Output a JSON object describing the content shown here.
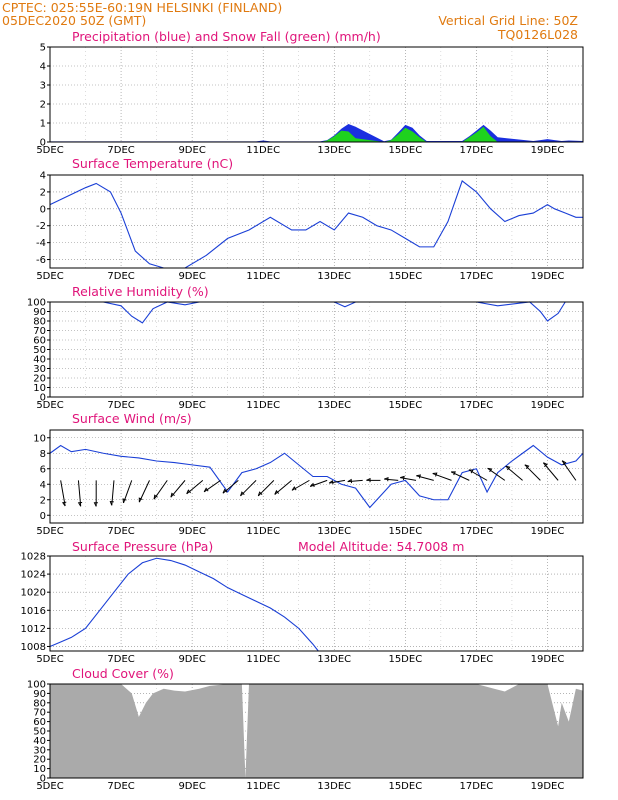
{
  "header": {
    "line1_left": "CPTEC:   025:55E-60:19N   HELSINKI (FINLAND)",
    "line2_left": "05DEC2020 50Z (GMT)",
    "line1_right": "Vertical Grid Line: 50Z",
    "line2_right": "TQ0126L028"
  },
  "colors": {
    "precip": "#1a2fe0",
    "snow": "#1ed21e",
    "line": "#1a3fd6",
    "cloud": "#aaaaaa",
    "header": "#e07a10",
    "title": "#e0147a",
    "arrow": "#000000"
  },
  "x_axis": {
    "labels": [
      "5DEC",
      "7DEC",
      "9DEC",
      "11DEC",
      "13DEC",
      "15DEC",
      "17DEC",
      "19DEC"
    ],
    "range_days": [
      0,
      15
    ]
  },
  "chart_data": [
    {
      "type": "area",
      "title": "Precipitation (blue) and Snow Fall (green) (mm/h)",
      "ylim": [
        0,
        5
      ],
      "yticks": [
        0,
        1,
        2,
        3,
        4,
        5
      ],
      "series": [
        {
          "name": "Precipitation",
          "x": [
            0,
            5.8,
            6.0,
            6.2,
            7.6,
            7.8,
            8.0,
            8.2,
            8.4,
            8.6,
            9.4,
            9.6,
            9.8,
            10.0,
            10.2,
            10.4,
            10.6,
            11.6,
            11.8,
            12.0,
            12.2,
            12.4,
            12.6,
            13.6,
            13.8,
            14.0,
            14.2,
            14.4,
            14.6,
            15.0
          ],
          "values": [
            0.03,
            0.03,
            0.08,
            0.03,
            0.03,
            0.1,
            0.35,
            0.7,
            0.95,
            0.8,
            0.04,
            0.12,
            0.5,
            0.9,
            0.75,
            0.35,
            0.05,
            0.05,
            0.3,
            0.6,
            0.9,
            0.6,
            0.25,
            0.05,
            0.1,
            0.15,
            0.1,
            0.05,
            0.08,
            0.05
          ]
        },
        {
          "name": "Snow Fall",
          "x": [
            0,
            7.6,
            7.8,
            8.0,
            8.2,
            8.4,
            8.6,
            9.4,
            9.6,
            9.8,
            10.0,
            10.2,
            10.4,
            10.6,
            11.6,
            11.8,
            12.0,
            12.2,
            12.4,
            12.6,
            13.6,
            15.0
          ],
          "values": [
            0.0,
            0.0,
            0.08,
            0.3,
            0.6,
            0.55,
            0.2,
            0.0,
            0.1,
            0.4,
            0.75,
            0.55,
            0.25,
            0.0,
            0.0,
            0.25,
            0.5,
            0.8,
            0.3,
            0.0,
            0.0,
            0.0
          ]
        }
      ]
    },
    {
      "type": "line",
      "title": "Surface Temperature (nC)",
      "ylim": [
        -7,
        4
      ],
      "yticks": [
        -6,
        -4,
        -2,
        0,
        2,
        4
      ],
      "x": [
        0,
        0.5,
        1.0,
        1.3,
        1.7,
        2.0,
        2.4,
        2.8,
        3.2,
        3.8,
        4.4,
        5.0,
        5.6,
        6.2,
        6.8,
        7.2,
        7.6,
        8.0,
        8.4,
        8.8,
        9.2,
        9.6,
        10.0,
        10.4,
        10.8,
        11.2,
        11.6,
        12.0,
        12.4,
        12.8,
        13.2,
        13.6,
        14.0,
        14.2,
        14.5,
        14.8,
        15.0
      ],
      "values": [
        0.5,
        1.5,
        2.5,
        3.0,
        2.0,
        -0.5,
        -5.0,
        -6.5,
        -7.0,
        -7.0,
        -5.5,
        -3.5,
        -2.5,
        -1.0,
        -2.5,
        -2.5,
        -1.5,
        -2.5,
        -0.5,
        -1.0,
        -2.0,
        -2.5,
        -3.5,
        -4.5,
        -4.5,
        -1.5,
        3.3,
        2.0,
        0.0,
        -1.5,
        -0.8,
        -0.5,
        0.5,
        0.0,
        -0.5,
        -1.0,
        -1.0
      ]
    },
    {
      "type": "line",
      "title": "Relative Humidity (%)",
      "ylim": [
        0,
        100
      ],
      "yticks": [
        0,
        10,
        20,
        30,
        40,
        50,
        60,
        70,
        80,
        90,
        100
      ],
      "x": [
        0,
        1.5,
        2.0,
        2.3,
        2.6,
        2.9,
        3.3,
        3.8,
        4.2,
        4.8,
        5.4,
        6.0,
        6.8,
        8.0,
        8.3,
        8.6,
        9.0,
        10.0,
        11.0,
        12.0,
        12.6,
        13.5,
        13.8,
        14.0,
        14.3,
        14.5,
        15.0
      ],
      "values": [
        100,
        100,
        96,
        85,
        78,
        93,
        100,
        97,
        100,
        100,
        100,
        100,
        100,
        100,
        95,
        100,
        100,
        100,
        100,
        100,
        96,
        100,
        90,
        80,
        88,
        100,
        100
      ]
    },
    {
      "type": "line",
      "title": "Surface Wind (m/s)",
      "ylim": [
        -1,
        11
      ],
      "yticks": [
        0,
        2,
        4,
        6,
        8,
        10
      ],
      "x": [
        0,
        0.3,
        0.6,
        1.0,
        1.5,
        2.0,
        2.5,
        3.0,
        3.5,
        4.0,
        4.5,
        5.0,
        5.4,
        5.8,
        6.2,
        6.6,
        7.0,
        7.4,
        7.8,
        8.2,
        8.6,
        9.0,
        9.3,
        9.6,
        10.0,
        10.4,
        10.8,
        11.2,
        11.6,
        12.0,
        12.3,
        12.6,
        13.0,
        13.3,
        13.6,
        14.0,
        14.4,
        14.8,
        15.0
      ],
      "values": [
        8.0,
        9.0,
        8.2,
        8.5,
        8.0,
        7.6,
        7.4,
        7.0,
        6.8,
        6.5,
        6.2,
        3.0,
        5.5,
        6.0,
        6.8,
        8.0,
        6.5,
        5.0,
        5.0,
        4.0,
        3.5,
        1.0,
        2.5,
        4.0,
        4.5,
        2.5,
        2.0,
        2.0,
        5.5,
        6.0,
        3.0,
        5.5,
        7.0,
        8.0,
        9.0,
        7.5,
        6.5,
        7.0,
        8.0
      ]
    },
    {
      "type": "line",
      "title": "Surface Pressure (hPa)",
      "ylim": [
        1007,
        1028
      ],
      "yticks": [
        1008,
        1012,
        1016,
        1020,
        1024,
        1028
      ],
      "x": [
        0,
        0.3,
        0.6,
        1.0,
        1.4,
        1.8,
        2.2,
        2.6,
        3.0,
        3.4,
        3.8,
        4.2,
        4.6,
        5.0,
        5.4,
        5.8,
        6.2,
        6.6,
        7.0,
        7.4,
        7.55
      ],
      "values": [
        1008,
        1009,
        1010,
        1012,
        1016,
        1020,
        1024,
        1026.5,
        1027.5,
        1027,
        1026,
        1024.5,
        1023,
        1021,
        1019.5,
        1018,
        1016.5,
        1014.5,
        1012,
        1008.5,
        1007
      ]
    },
    {
      "type": "area",
      "title": "Cloud Cover (%)",
      "ylim": [
        0,
        100
      ],
      "yticks": [
        0,
        10,
        20,
        30,
        40,
        50,
        60,
        70,
        80,
        90,
        100
      ],
      "x": [
        0,
        2.0,
        2.3,
        2.5,
        2.7,
        2.9,
        3.2,
        3.5,
        3.8,
        4.2,
        4.5,
        5.0,
        5.4,
        5.5,
        5.6,
        6.0,
        8.0,
        12.0,
        12.5,
        12.8,
        13.2,
        14.0,
        14.2,
        14.3,
        14.4,
        14.6,
        14.8,
        15.0
      ],
      "values": [
        100,
        100,
        90,
        65,
        80,
        90,
        95,
        93,
        92,
        95,
        98,
        100,
        100,
        0,
        100,
        100,
        100,
        100,
        95,
        92,
        100,
        100,
        70,
        55,
        80,
        60,
        95,
        93
      ]
    },
    {
      "type": "other",
      "title": "Wind direction arrows",
      "x": [
        0.3,
        0.8,
        1.3,
        1.8,
        2.3,
        2.8,
        3.3,
        3.8,
        4.3,
        4.8,
        5.3,
        5.8,
        6.3,
        6.8,
        7.3,
        7.8,
        8.3,
        8.8,
        9.3,
        9.8,
        10.3,
        10.8,
        11.3,
        11.8,
        12.3,
        12.8,
        13.3,
        13.8,
        14.3,
        14.8
      ],
      "speed": [
        8,
        8,
        8,
        7.5,
        7,
        7,
        6.5,
        6,
        5.5,
        5,
        5,
        6,
        6,
        6,
        5,
        4,
        3,
        2.5,
        2,
        2,
        3,
        4,
        5,
        5,
        5.5,
        5.5,
        6,
        6,
        6.5,
        7
      ],
      "direction_deg": [
        170,
        175,
        180,
        185,
        200,
        205,
        215,
        220,
        230,
        235,
        230,
        225,
        225,
        230,
        240,
        250,
        260,
        265,
        270,
        275,
        280,
        285,
        290,
        295,
        300,
        305,
        310,
        315,
        320,
        325
      ]
    }
  ],
  "panel_extras": {
    "pressure_right_label": "Model Altitude: 54.7008 m"
  }
}
